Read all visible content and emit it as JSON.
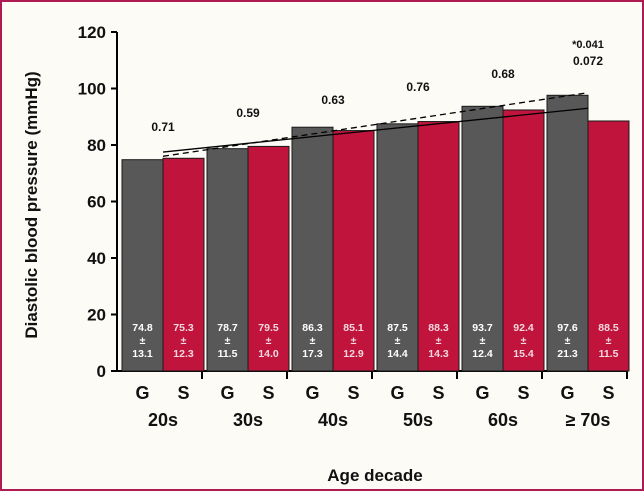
{
  "chart_data": {
    "type": "bar",
    "title": "",
    "xlabel": "Age decade",
    "ylabel": "Diastolic blood pressure (mmHg)",
    "ylim": [
      0,
      120
    ],
    "yticks": [
      "0",
      "20",
      "40",
      "60",
      "80",
      "100",
      "120"
    ],
    "groups": [
      "20s",
      "30s",
      "40s",
      "50s",
      "60s",
      "≥ 70s"
    ],
    "sub_labels": [
      "G",
      "S"
    ],
    "colors": {
      "G": "#585858",
      "S": "#c0143c"
    },
    "series": [
      {
        "key": "G",
        "values": [
          74.8,
          78.7,
          86.3,
          87.5,
          93.7,
          97.6
        ],
        "sd": [
          13.1,
          11.5,
          17.3,
          14.4,
          12.4,
          21.3
        ],
        "value_labels": [
          "74.8",
          "78.7",
          "86.3",
          "87.5",
          "93.7",
          "97.6"
        ],
        "sd_labels": [
          "13.1",
          "11.5",
          "17.3",
          "14.4",
          "12.4",
          "21.3"
        ]
      },
      {
        "key": "S",
        "values": [
          75.3,
          79.5,
          85.1,
          88.3,
          92.4,
          88.5
        ],
        "sd": [
          12.3,
          14.0,
          12.9,
          14.3,
          15.4,
          11.5
        ],
        "value_labels": [
          "75.3",
          "79.5",
          "85.1",
          "88.3",
          "92.4",
          "88.5"
        ],
        "sd_labels": [
          "12.3",
          "14.0",
          "12.9",
          "14.3",
          "15.4",
          "11.5"
        ]
      }
    ],
    "pm_symbol": "±",
    "p_values": [
      "0.71",
      "0.59",
      "0.63",
      "0.76",
      "0.68",
      "0.072"
    ],
    "extra_annotation": "*0.041",
    "trendlines": [
      {
        "style": "solid",
        "y_start": 77.5,
        "y_end": 93
      },
      {
        "style": "dashed",
        "y_start": 76,
        "y_end": 98.5
      }
    ]
  }
}
